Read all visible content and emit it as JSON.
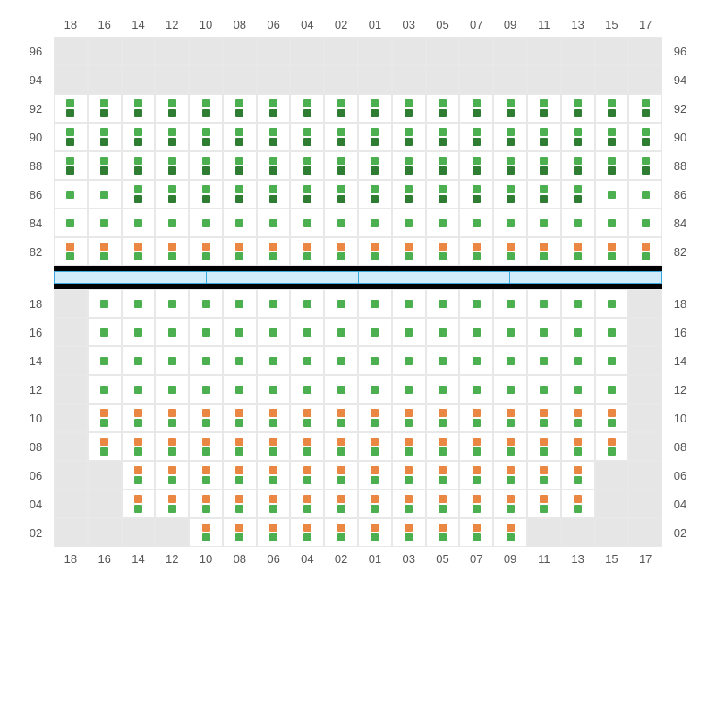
{
  "colors": {
    "green": "#4caf50",
    "darkgreen": "#2e7d32",
    "orange": "#e98743",
    "unavail": "#e6e6e6",
    "grid": "#e8e8e8",
    "label": "#555555",
    "barBlack": "#000000",
    "barBlueBg": "#d0ecfb",
    "barBlueBorder": "#3aa7dd"
  },
  "columns": [
    "18",
    "16",
    "14",
    "12",
    "10",
    "08",
    "06",
    "04",
    "02",
    "01",
    "03",
    "05",
    "07",
    "09",
    "11",
    "13",
    "15",
    "17"
  ],
  "upperRows": [
    "96",
    "94",
    "92",
    "90",
    "88",
    "86",
    "84",
    "82"
  ],
  "lowerRows": [
    "18",
    "16",
    "14",
    "12",
    "10",
    "08",
    "06",
    "04",
    "02"
  ],
  "blueSegments": 4,
  "upper": {
    "96": {
      "all": "unavail"
    },
    "94": {
      "all": "unavail"
    },
    "92": {
      "seats": [
        [
          "g",
          "d"
        ],
        [
          "g",
          "d"
        ],
        [
          "g",
          "d"
        ],
        [
          "g",
          "d"
        ],
        [
          "g",
          "d"
        ],
        [
          "g",
          "d"
        ],
        [
          "g",
          "d"
        ],
        [
          "g",
          "d"
        ],
        [
          "g",
          "d"
        ],
        [
          "g",
          "d"
        ],
        [
          "g",
          "d"
        ],
        [
          "g",
          "d"
        ],
        [
          "g",
          "d"
        ],
        [
          "g",
          "d"
        ],
        [
          "g",
          "d"
        ],
        [
          "g",
          "d"
        ],
        [
          "g",
          "d"
        ],
        [
          "g",
          "d"
        ]
      ]
    },
    "90": {
      "seats": [
        [
          "g",
          "d"
        ],
        [
          "g",
          "d"
        ],
        [
          "g",
          "d"
        ],
        [
          "g",
          "d"
        ],
        [
          "g",
          "d"
        ],
        [
          "g",
          "d"
        ],
        [
          "g",
          "d"
        ],
        [
          "g",
          "d"
        ],
        [
          "g",
          "d"
        ],
        [
          "g",
          "d"
        ],
        [
          "g",
          "d"
        ],
        [
          "g",
          "d"
        ],
        [
          "g",
          "d"
        ],
        [
          "g",
          "d"
        ],
        [
          "g",
          "d"
        ],
        [
          "g",
          "d"
        ],
        [
          "g",
          "d"
        ],
        [
          "g",
          "d"
        ]
      ]
    },
    "88": {
      "seats": [
        [
          "g",
          "d"
        ],
        [
          "g",
          "d"
        ],
        [
          "g",
          "d"
        ],
        [
          "g",
          "d"
        ],
        [
          "g",
          "d"
        ],
        [
          "g",
          "d"
        ],
        [
          "g",
          "d"
        ],
        [
          "g",
          "d"
        ],
        [
          "g",
          "d"
        ],
        [
          "g",
          "d"
        ],
        [
          "g",
          "d"
        ],
        [
          "g",
          "d"
        ],
        [
          "g",
          "d"
        ],
        [
          "g",
          "d"
        ],
        [
          "g",
          "d"
        ],
        [
          "g",
          "d"
        ],
        [
          "g",
          "d"
        ],
        [
          "g",
          "d"
        ]
      ]
    },
    "86": {
      "seats": [
        [
          "g"
        ],
        [
          "g"
        ],
        [
          "g",
          "d"
        ],
        [
          "g",
          "d"
        ],
        [
          "g",
          "d"
        ],
        [
          "g",
          "d"
        ],
        [
          "g",
          "d"
        ],
        [
          "g",
          "d"
        ],
        [
          "g",
          "d"
        ],
        [
          "g",
          "d"
        ],
        [
          "g",
          "d"
        ],
        [
          "g",
          "d"
        ],
        [
          "g",
          "d"
        ],
        [
          "g",
          "d"
        ],
        [
          "g",
          "d"
        ],
        [
          "g",
          "d"
        ],
        [
          "g"
        ],
        [
          "g"
        ]
      ]
    },
    "84": {
      "seats": [
        [
          "g"
        ],
        [
          "g"
        ],
        [
          "g"
        ],
        [
          "g"
        ],
        [
          "g"
        ],
        [
          "g"
        ],
        [
          "g"
        ],
        [
          "g"
        ],
        [
          "g"
        ],
        [
          "g"
        ],
        [
          "g"
        ],
        [
          "g"
        ],
        [
          "g"
        ],
        [
          "g"
        ],
        [
          "g"
        ],
        [
          "g"
        ],
        [
          "g"
        ],
        [
          "g"
        ]
      ]
    },
    "82": {
      "seats": [
        [
          "o",
          "g"
        ],
        [
          "o",
          "g"
        ],
        [
          "o",
          "g"
        ],
        [
          "o",
          "g"
        ],
        [
          "o",
          "g"
        ],
        [
          "o",
          "g"
        ],
        [
          "o",
          "g"
        ],
        [
          "o",
          "g"
        ],
        [
          "o",
          "g"
        ],
        [
          "o",
          "g"
        ],
        [
          "o",
          "g"
        ],
        [
          "o",
          "g"
        ],
        [
          "o",
          "g"
        ],
        [
          "o",
          "g"
        ],
        [
          "o",
          "g"
        ],
        [
          "o",
          "g"
        ],
        [
          "o",
          "g"
        ],
        [
          "o",
          "g"
        ]
      ]
    }
  },
  "lower": {
    "18": {
      "seats": [
        "u",
        [
          "g"
        ],
        [
          "g"
        ],
        [
          "g"
        ],
        [
          "g"
        ],
        [
          "g"
        ],
        [
          "g"
        ],
        [
          "g"
        ],
        [
          "g"
        ],
        [
          "g"
        ],
        [
          "g"
        ],
        [
          "g"
        ],
        [
          "g"
        ],
        [
          "g"
        ],
        [
          "g"
        ],
        [
          "g"
        ],
        [
          "g"
        ],
        "u"
      ]
    },
    "16": {
      "seats": [
        "u",
        [
          "g"
        ],
        [
          "g"
        ],
        [
          "g"
        ],
        [
          "g"
        ],
        [
          "g"
        ],
        [
          "g"
        ],
        [
          "g"
        ],
        [
          "g"
        ],
        [
          "g"
        ],
        [
          "g"
        ],
        [
          "g"
        ],
        [
          "g"
        ],
        [
          "g"
        ],
        [
          "g"
        ],
        [
          "g"
        ],
        [
          "g"
        ],
        "u"
      ]
    },
    "14": {
      "seats": [
        "u",
        [
          "g"
        ],
        [
          "g"
        ],
        [
          "g"
        ],
        [
          "g"
        ],
        [
          "g"
        ],
        [
          "g"
        ],
        [
          "g"
        ],
        [
          "g"
        ],
        [
          "g"
        ],
        [
          "g"
        ],
        [
          "g"
        ],
        [
          "g"
        ],
        [
          "g"
        ],
        [
          "g"
        ],
        [
          "g"
        ],
        [
          "g"
        ],
        "u"
      ]
    },
    "12": {
      "seats": [
        "u",
        [
          "g"
        ],
        [
          "g"
        ],
        [
          "g"
        ],
        [
          "g"
        ],
        [
          "g"
        ],
        [
          "g"
        ],
        [
          "g"
        ],
        [
          "g"
        ],
        [
          "g"
        ],
        [
          "g"
        ],
        [
          "g"
        ],
        [
          "g"
        ],
        [
          "g"
        ],
        [
          "g"
        ],
        [
          "g"
        ],
        [
          "g"
        ],
        "u"
      ]
    },
    "10": {
      "seats": [
        "u",
        [
          "o",
          "g"
        ],
        [
          "o",
          "g"
        ],
        [
          "o",
          "g"
        ],
        [
          "o",
          "g"
        ],
        [
          "o",
          "g"
        ],
        [
          "o",
          "g"
        ],
        [
          "o",
          "g"
        ],
        [
          "o",
          "g"
        ],
        [
          "o",
          "g"
        ],
        [
          "o",
          "g"
        ],
        [
          "o",
          "g"
        ],
        [
          "o",
          "g"
        ],
        [
          "o",
          "g"
        ],
        [
          "o",
          "g"
        ],
        [
          "o",
          "g"
        ],
        [
          "o",
          "g"
        ],
        "u"
      ]
    },
    "08": {
      "seats": [
        "u",
        [
          "o",
          "g"
        ],
        [
          "o",
          "g"
        ],
        [
          "o",
          "g"
        ],
        [
          "o",
          "g"
        ],
        [
          "o",
          "g"
        ],
        [
          "o",
          "g"
        ],
        [
          "o",
          "g"
        ],
        [
          "o",
          "g"
        ],
        [
          "o",
          "g"
        ],
        [
          "o",
          "g"
        ],
        [
          "o",
          "g"
        ],
        [
          "o",
          "g"
        ],
        [
          "o",
          "g"
        ],
        [
          "o",
          "g"
        ],
        [
          "o",
          "g"
        ],
        [
          "o",
          "g"
        ],
        "u"
      ]
    },
    "06": {
      "seats": [
        "u",
        "u",
        [
          "o",
          "g"
        ],
        [
          "o",
          "g"
        ],
        [
          "o",
          "g"
        ],
        [
          "o",
          "g"
        ],
        [
          "o",
          "g"
        ],
        [
          "o",
          "g"
        ],
        [
          "o",
          "g"
        ],
        [
          "o",
          "g"
        ],
        [
          "o",
          "g"
        ],
        [
          "o",
          "g"
        ],
        [
          "o",
          "g"
        ],
        [
          "o",
          "g"
        ],
        [
          "o",
          "g"
        ],
        [
          "o",
          "g"
        ],
        "u",
        "u"
      ]
    },
    "04": {
      "seats": [
        "u",
        "u",
        [
          "o",
          "g"
        ],
        [
          "o",
          "g"
        ],
        [
          "o",
          "g"
        ],
        [
          "o",
          "g"
        ],
        [
          "o",
          "g"
        ],
        [
          "o",
          "g"
        ],
        [
          "o",
          "g"
        ],
        [
          "o",
          "g"
        ],
        [
          "o",
          "g"
        ],
        [
          "o",
          "g"
        ],
        [
          "o",
          "g"
        ],
        [
          "o",
          "g"
        ],
        [
          "o",
          "g"
        ],
        [
          "o",
          "g"
        ],
        "u",
        "u"
      ]
    },
    "02": {
      "seats": [
        "u",
        "u",
        "u",
        "u",
        [
          "o",
          "g"
        ],
        [
          "o",
          "g"
        ],
        [
          "o",
          "g"
        ],
        [
          "o",
          "g"
        ],
        [
          "o",
          "g"
        ],
        [
          "o",
          "g"
        ],
        [
          "o",
          "g"
        ],
        [
          "o",
          "g"
        ],
        [
          "o",
          "g"
        ],
        [
          "o",
          "g"
        ],
        "u",
        "u",
        "u",
        "u"
      ]
    }
  }
}
